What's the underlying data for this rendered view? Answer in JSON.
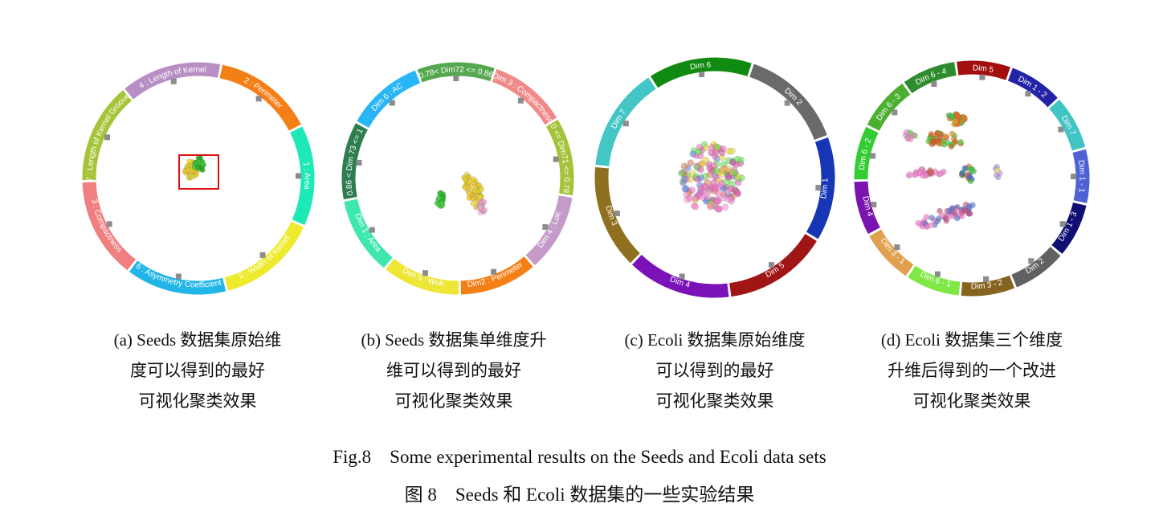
{
  "panels": [
    {
      "id": "a",
      "segments": [
        {
          "label": "4 : Length of Kernel",
          "color": "#b78fc5"
        },
        {
          "label": "2 : Perimeter",
          "color": "#f57f17"
        },
        {
          "label": "1 : Area",
          "color": "#1de9b6"
        },
        {
          "label": "5 : Width of Kernel",
          "color": "#eeea2e"
        },
        {
          "label": "6 : Asymmetry Coefficient",
          "color": "#22b5e8"
        },
        {
          "label": "3 : Compactness",
          "color": "#f07f7f"
        },
        {
          "label": "7 : Length of Kernel Groove",
          "color": "#a6c437"
        }
      ],
      "caption": [
        "(a) Seeds 数据集原始维",
        "度可以得到的最好",
        "可视化聚类效果"
      ]
    },
    {
      "id": "b",
      "segments": [
        {
          "label": "0.78< Dim72 <= 0.86",
          "color": "#55a84f"
        },
        {
          "label": "Dim 3 : Compactness",
          "color": "#f08a8a"
        },
        {
          "label": "0 <= Dim71 <= 0.78",
          "color": "#a4c33a"
        },
        {
          "label": "Dim 4 : LoK",
          "color": "#c49ac8"
        },
        {
          "label": "Dim2 : Perimeter",
          "color": "#f57f17"
        },
        {
          "label": "Dim 5 : WoK",
          "color": "#ede635"
        },
        {
          "label": "Dim 1 : Area",
          "color": "#3ee6b0"
        },
        {
          "label": "0.86 < Dim 73 <= 1",
          "color": "#2e7d4f"
        },
        {
          "label": "Dim 6 : AC",
          "color": "#29b6f6"
        }
      ],
      "caption": [
        "(b) Seeds 数据集单维度升",
        "维可以得到的最好",
        "可视化聚类效果"
      ]
    },
    {
      "id": "c",
      "segments": [
        {
          "label": "Dim 6",
          "color": "#108a10"
        },
        {
          "label": "Dim 2",
          "color": "#6a6a6a"
        },
        {
          "label": "Dim 1",
          "color": "#1736b5"
        },
        {
          "label": "Dim 5",
          "color": "#a01515"
        },
        {
          "label": "Dim 4",
          "color": "#7a12b8"
        },
        {
          "label": "Dim 3",
          "color": "#8e7020"
        },
        {
          "label": "Dim 7",
          "color": "#45c6c6"
        }
      ],
      "caption": [
        "(c) Ecoli 数据集原始维度",
        "可以得到的最好",
        "可视化聚类效果"
      ]
    },
    {
      "id": "d",
      "segments": [
        {
          "label": "Dim 5",
          "color": "#a30f0f"
        },
        {
          "label": "Dim 1 - 2",
          "color": "#2323a8"
        },
        {
          "label": "Dim 7",
          "color": "#40c4c4"
        },
        {
          "label": "Dim 1 - 1",
          "color": "#4e62d6"
        },
        {
          "label": "Dim 1 - 3",
          "color": "#0e0e73"
        },
        {
          "label": "Dim 2",
          "color": "#616161"
        },
        {
          "label": "Dim 3 - 2",
          "color": "#866420"
        },
        {
          "label": "Dim 6 - 1",
          "color": "#80e844"
        },
        {
          "label": "Dim 3 - 1",
          "color": "#e0a050"
        },
        {
          "label": "Dim 4",
          "color": "#7a14ae"
        },
        {
          "label": "Dim 6 - 2",
          "color": "#33cc33"
        },
        {
          "label": "Dim 6 - 3",
          "color": "#4caf30"
        },
        {
          "label": "Dim 6 - 4",
          "color": "#2e8b2e"
        }
      ],
      "caption": [
        "(d) Ecoli 数据集三个维度",
        "升维后得到的一个改进",
        "可视化聚类效果"
      ]
    }
  ],
  "figure_title_en": "Fig.8    Some experimental results on the Seeds and Ecoli data sets",
  "figure_title_cn": "图 8    Seeds 和 Ecoli 数据集的一些实验结果"
}
